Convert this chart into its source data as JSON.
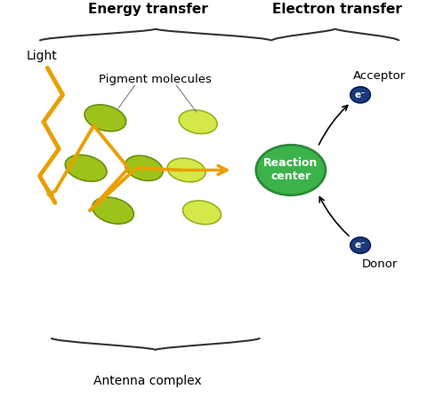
{
  "bg_color": "#ffffff",
  "title_energy": "Energy transfer",
  "title_electron": "Electron transfer",
  "label_light": "Light",
  "label_pigment": "Pigment molecules",
  "label_antenna": "Antenna complex",
  "label_reaction": "Reaction\ncenter",
  "label_acceptor": "Acceptor",
  "label_donor": "Donor",
  "label_eminus": "e⁻",
  "pigment_dark_color": "#9dc21a",
  "pigment_light_color": "#d4e84a",
  "reaction_center_color": "#3cb34a",
  "reaction_center_edge": "#2a8a38",
  "arrow_color": "#e8a000",
  "electron_circle_color": "#1a3a7a",
  "electron_text_color": "#ffffff",
  "brace_color": "#333333"
}
